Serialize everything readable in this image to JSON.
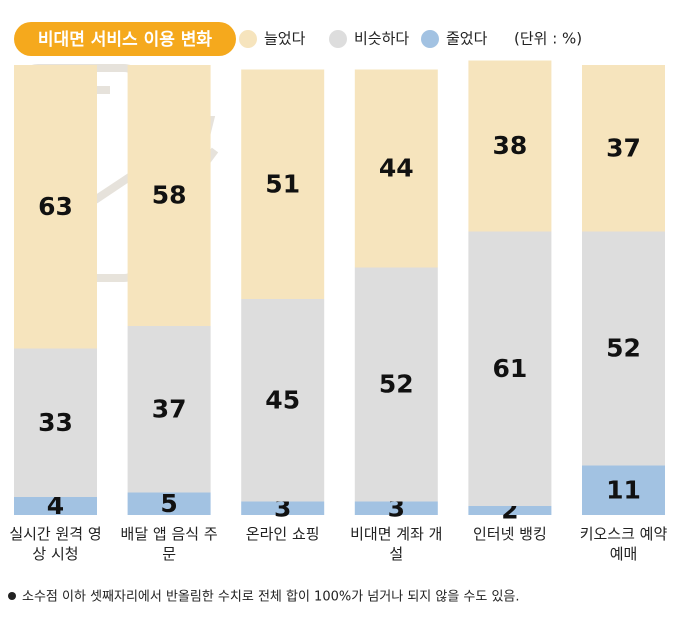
{
  "chart_data": {
    "type": "bar",
    "stacked": true,
    "title": "비대면 서비스 이용 변화",
    "unit": "(단위 : %)",
    "categories": [
      "실시간 원격 영상 시청",
      "배달 앱 음식 주문",
      "온라인 쇼핑",
      "비대면 계좌 개설",
      "인터넷 뱅킹",
      "키오스크 예약 예매"
    ],
    "series": [
      {
        "name": "늘었다",
        "color": "#f6e4bd",
        "values": [
          63,
          58,
          51,
          44,
          38,
          37
        ]
      },
      {
        "name": "비슷하다",
        "color": "#dddddd",
        "values": [
          33,
          37,
          45,
          52,
          61,
          52
        ]
      },
      {
        "name": "줄었다",
        "color": "#a2c2e2",
        "values": [
          4,
          5,
          3,
          3,
          2,
          11
        ]
      }
    ],
    "ylim": [
      0,
      100
    ],
    "note": "소수점 이하 셋째자리에서 반올림한 수치로 전체 합이 100%가 넘거나 되지 않을 수도 있음."
  }
}
